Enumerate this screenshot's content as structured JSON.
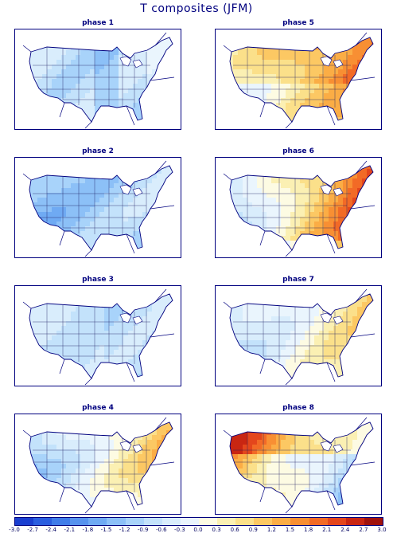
{
  "title": "T composites (JFM)",
  "panels": [
    {
      "label": "phase 1",
      "pattern": "west-cool"
    },
    {
      "label": "phase 2",
      "pattern": "west-cool-strong"
    },
    {
      "label": "phase 3",
      "pattern": "mild-cool"
    },
    {
      "label": "phase 4",
      "pattern": "east-warm-mild"
    },
    {
      "label": "phase 5",
      "pattern": "north-warm"
    },
    {
      "label": "phase 6",
      "pattern": "east-warm-strong"
    },
    {
      "label": "phase 7",
      "pattern": "east-warm-weak"
    },
    {
      "label": "phase 8",
      "pattern": "north-warm-east-cool"
    }
  ],
  "colorbar": {
    "ticks": [
      "-3.0",
      "-2.7",
      "-2.4",
      "-2.1",
      "-1.8",
      "-1.5",
      "-1.2",
      "-0.9",
      "-0.6",
      "-0.3",
      "0.0",
      "0.3",
      "0.6",
      "0.9",
      "1.2",
      "1.5",
      "1.8",
      "2.1",
      "2.4",
      "2.7",
      "3.0"
    ],
    "colors": [
      "#1a3fd1",
      "#2a5ee0",
      "#3f7ce9",
      "#5793ee",
      "#6faaf3",
      "#8cc0f7",
      "#a8d3fa",
      "#c3e2fb",
      "#d9edfc",
      "#eaf5fd",
      "#fdfbe3",
      "#fbf0b3",
      "#fbe08a",
      "#fcc863",
      "#fbad45",
      "#f88f33",
      "#f26a26",
      "#e4461c",
      "#c92612",
      "#a0120c"
    ]
  }
}
